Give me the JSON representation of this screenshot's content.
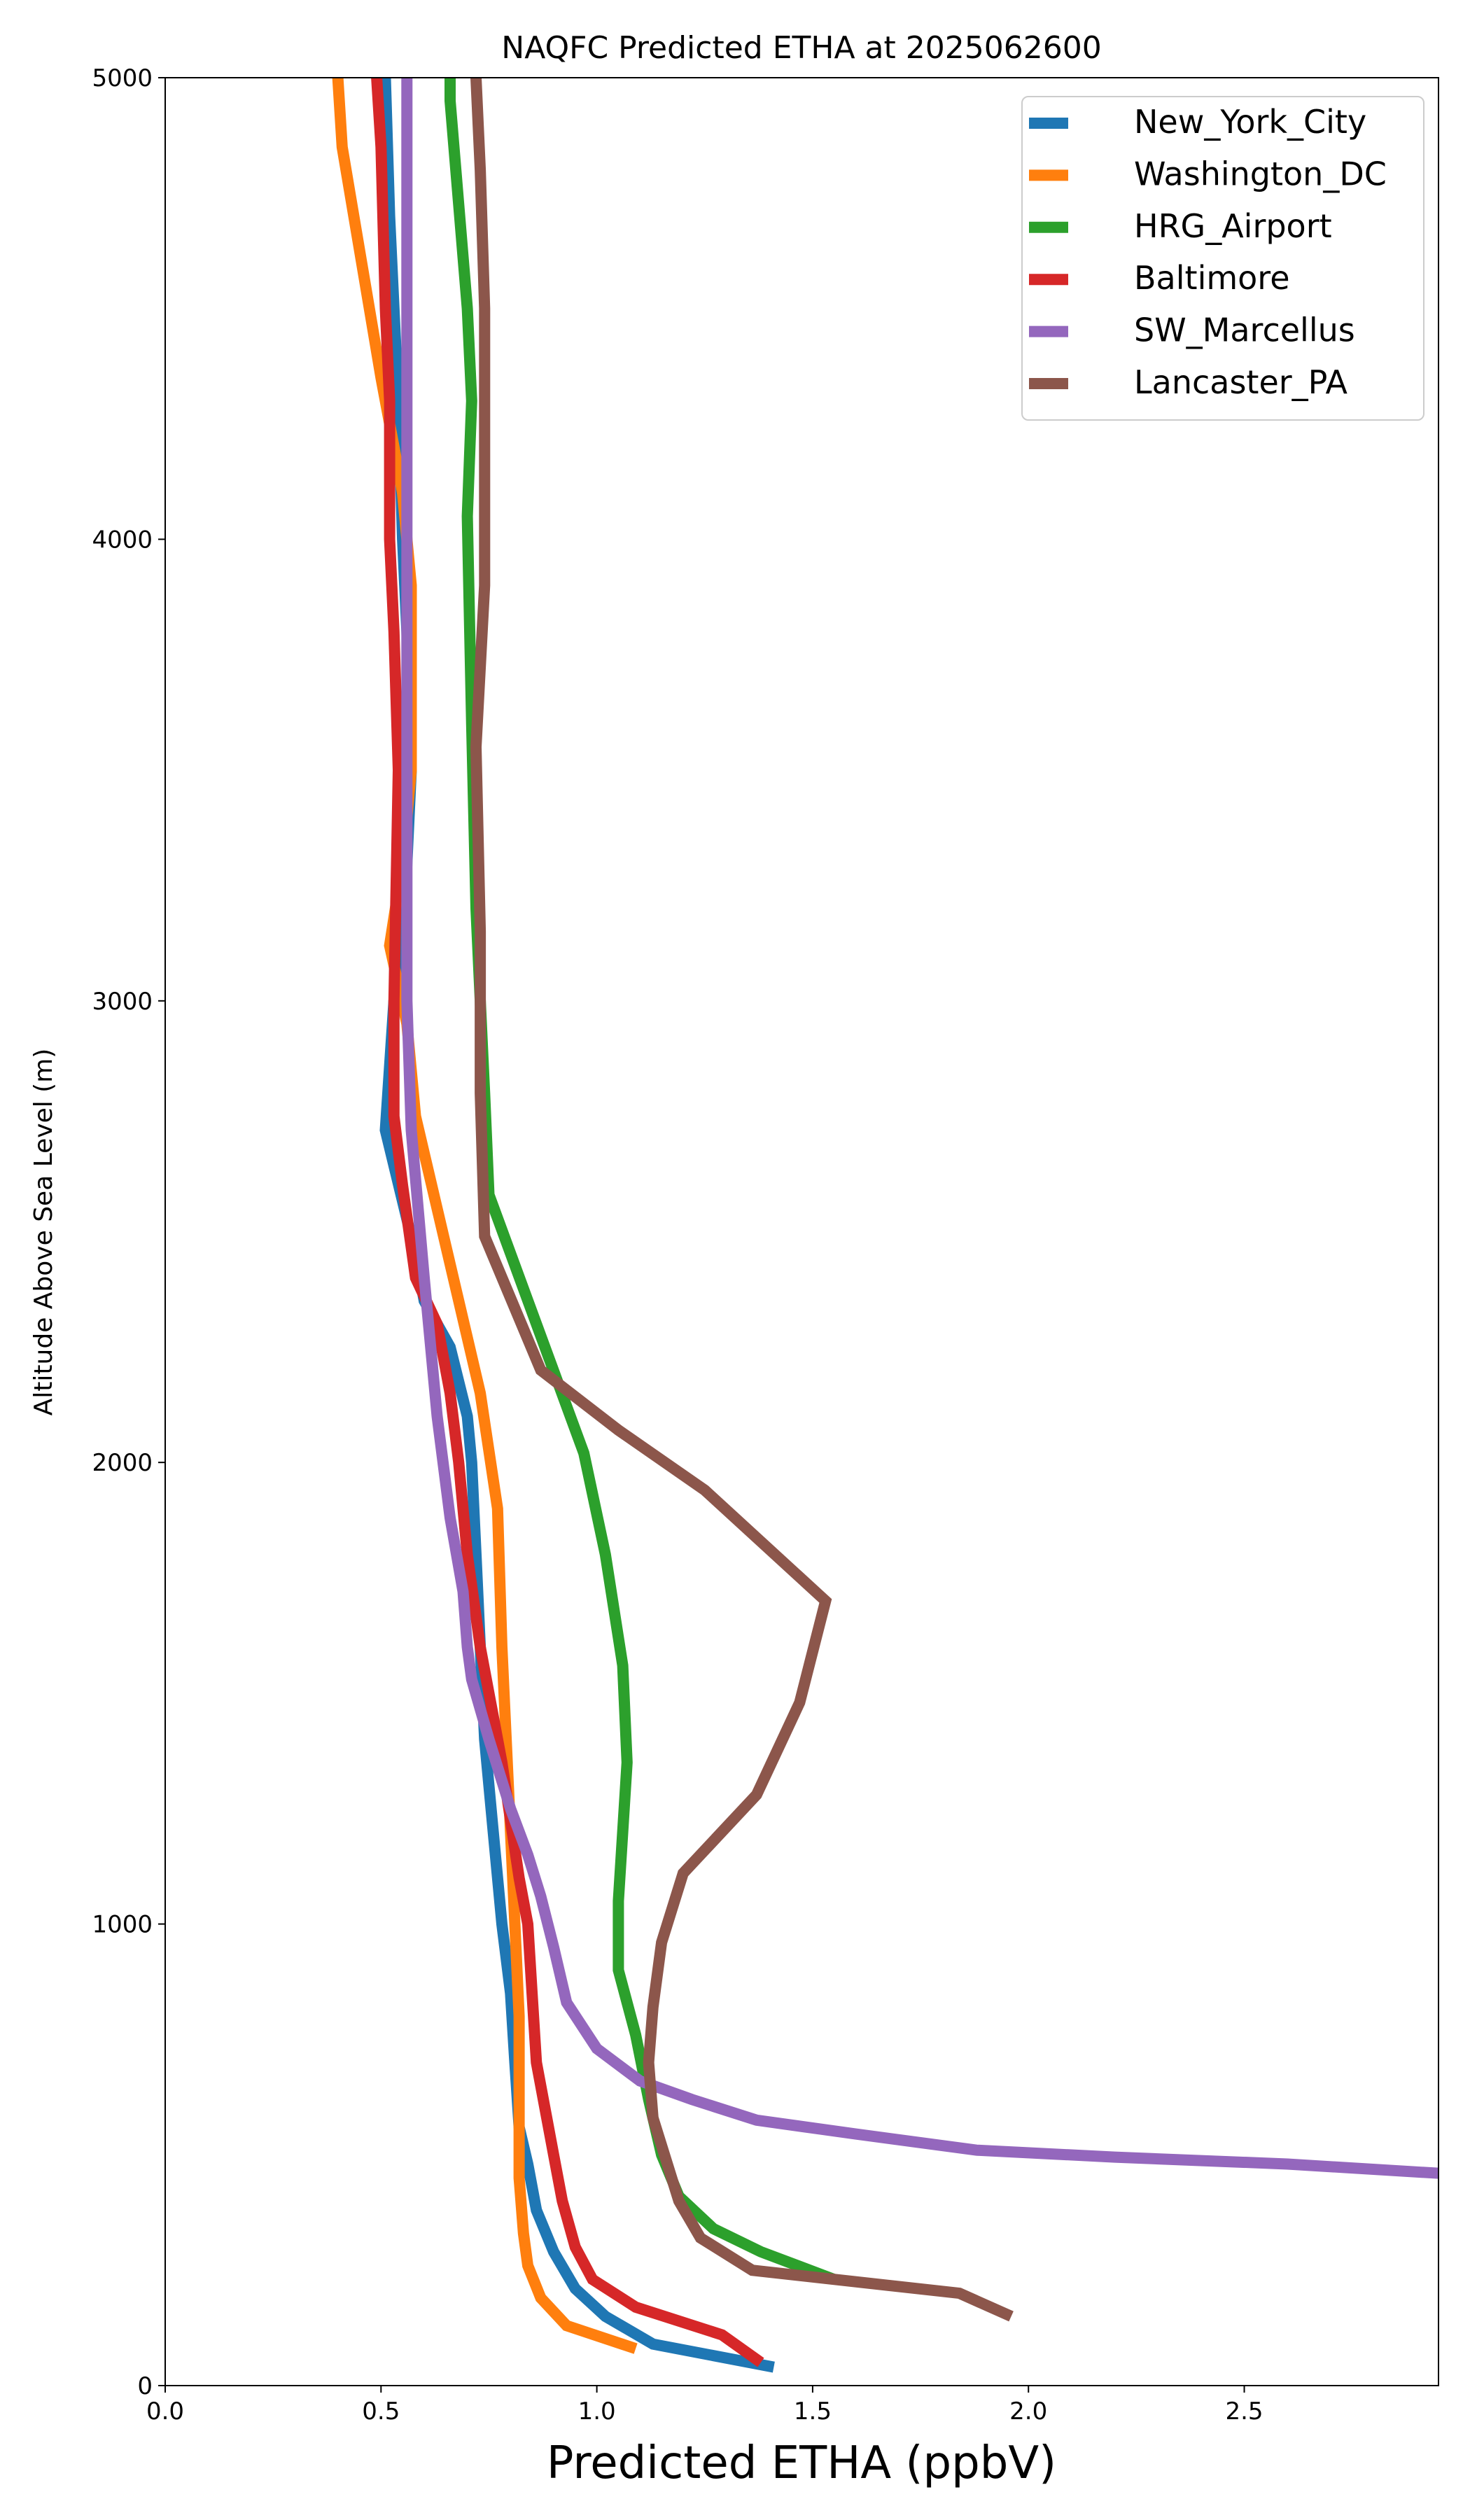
{
  "chart_data": {
    "type": "line",
    "title": "NAQFC Predicted ETHA at 2025062600",
    "xlabel": "Predicted ETHA (ppbV)",
    "ylabel": "Altitude Above Sea Level (m)",
    "xlim": [
      0.0,
      2.95
    ],
    "ylim": [
      0,
      5000
    ],
    "xticks": [
      "0.0",
      "0.5",
      "1.0",
      "1.5",
      "2.0",
      "2.5"
    ],
    "yticks": [
      "0",
      "1000",
      "2000",
      "3000",
      "4000",
      "5000"
    ],
    "grid": false,
    "legend": "top-right",
    "series": [
      {
        "name": "New_York_City",
        "color": "#1f77b4",
        "points": [
          [
            1.41,
            40
          ],
          [
            1.13,
            90
          ],
          [
            1.02,
            150
          ],
          [
            0.95,
            210
          ],
          [
            0.9,
            290
          ],
          [
            0.86,
            380
          ],
          [
            0.84,
            480
          ],
          [
            0.82,
            560
          ],
          [
            0.81,
            700
          ],
          [
            0.8,
            850
          ],
          [
            0.78,
            1000
          ],
          [
            0.76,
            1200
          ],
          [
            0.74,
            1400
          ],
          [
            0.73,
            1600
          ],
          [
            0.72,
            1800
          ],
          [
            0.71,
            2000
          ],
          [
            0.7,
            2100
          ],
          [
            0.66,
            2250
          ],
          [
            0.6,
            2350
          ],
          [
            0.58,
            2450
          ],
          [
            0.51,
            2720
          ],
          [
            0.53,
            3000
          ],
          [
            0.55,
            3100
          ],
          [
            0.57,
            3500
          ],
          [
            0.56,
            3800
          ],
          [
            0.55,
            4000
          ],
          [
            0.54,
            4300
          ],
          [
            0.53,
            4500
          ],
          [
            0.52,
            4700
          ],
          [
            0.51,
            5000
          ]
        ]
      },
      {
        "name": "Washington_DC",
        "color": "#ff7f0e",
        "points": [
          [
            1.09,
            80
          ],
          [
            0.93,
            130
          ],
          [
            0.87,
            190
          ],
          [
            0.84,
            260
          ],
          [
            0.83,
            330
          ],
          [
            0.82,
            450
          ],
          [
            0.82,
            600
          ],
          [
            0.82,
            800
          ],
          [
            0.81,
            1000
          ],
          [
            0.8,
            1200
          ],
          [
            0.79,
            1400
          ],
          [
            0.78,
            1600
          ],
          [
            0.77,
            1900
          ],
          [
            0.73,
            2150
          ],
          [
            0.68,
            2350
          ],
          [
            0.58,
            2750
          ],
          [
            0.56,
            2950
          ],
          [
            0.52,
            3120
          ],
          [
            0.55,
            3300
          ],
          [
            0.57,
            3500
          ],
          [
            0.57,
            3900
          ],
          [
            0.55,
            4100
          ],
          [
            0.5,
            4350
          ],
          [
            0.41,
            4850
          ],
          [
            0.4,
            5000
          ]
        ]
      },
      {
        "name": "HRG_Airport",
        "color": "#2ca02c",
        "points": [
          [
            1.55,
            230
          ],
          [
            1.38,
            290
          ],
          [
            1.27,
            340
          ],
          [
            1.19,
            410
          ],
          [
            1.15,
            500
          ],
          [
            1.12,
            620
          ],
          [
            1.09,
            760
          ],
          [
            1.05,
            900
          ],
          [
            1.05,
            1050
          ],
          [
            1.06,
            1200
          ],
          [
            1.07,
            1350
          ],
          [
            1.06,
            1560
          ],
          [
            1.02,
            1800
          ],
          [
            0.97,
            2020
          ],
          [
            0.86,
            2300
          ],
          [
            0.75,
            2580
          ],
          [
            0.74,
            2800
          ],
          [
            0.73,
            3000
          ],
          [
            0.72,
            3200
          ],
          [
            0.71,
            3600
          ],
          [
            0.7,
            4050
          ],
          [
            0.71,
            4300
          ],
          [
            0.7,
            4500
          ],
          [
            0.66,
            4950
          ],
          [
            0.66,
            5000
          ]
        ]
      },
      {
        "name": "Baltimore",
        "color": "#d62728",
        "points": [
          [
            1.38,
            50
          ],
          [
            1.29,
            110
          ],
          [
            1.09,
            170
          ],
          [
            0.99,
            230
          ],
          [
            0.95,
            300
          ],
          [
            0.92,
            400
          ],
          [
            0.9,
            500
          ],
          [
            0.88,
            600
          ],
          [
            0.86,
            700
          ],
          [
            0.85,
            850
          ],
          [
            0.84,
            1000
          ],
          [
            0.82,
            1100
          ],
          [
            0.78,
            1350
          ],
          [
            0.73,
            1600
          ],
          [
            0.7,
            1800
          ],
          [
            0.68,
            2000
          ],
          [
            0.66,
            2150
          ],
          [
            0.63,
            2300
          ],
          [
            0.58,
            2400
          ],
          [
            0.55,
            2600
          ],
          [
            0.53,
            2750
          ],
          [
            0.53,
            3000
          ],
          [
            0.54,
            3500
          ],
          [
            0.53,
            3800
          ],
          [
            0.52,
            4000
          ],
          [
            0.52,
            4300
          ],
          [
            0.51,
            4500
          ],
          [
            0.5,
            4850
          ],
          [
            0.49,
            5000
          ]
        ]
      },
      {
        "name": "SW_Marcellus",
        "color": "#9467bd",
        "points": [
          [
            2.95,
            460
          ],
          [
            2.6,
            480
          ],
          [
            2.2,
            495
          ],
          [
            1.88,
            510
          ],
          [
            1.6,
            545
          ],
          [
            1.37,
            575
          ],
          [
            1.22,
            620
          ],
          [
            1.1,
            660
          ],
          [
            1.0,
            730
          ],
          [
            0.93,
            830
          ],
          [
            0.9,
            950
          ],
          [
            0.87,
            1060
          ],
          [
            0.84,
            1150
          ],
          [
            0.8,
            1250
          ],
          [
            0.75,
            1400
          ],
          [
            0.71,
            1530
          ],
          [
            0.7,
            1600
          ],
          [
            0.69,
            1720
          ],
          [
            0.66,
            1880
          ],
          [
            0.63,
            2100
          ],
          [
            0.6,
            2400
          ],
          [
            0.57,
            2720
          ],
          [
            0.56,
            3000
          ],
          [
            0.56,
            3500
          ],
          [
            0.56,
            4000
          ],
          [
            0.56,
            4500
          ],
          [
            0.56,
            5000
          ]
        ]
      },
      {
        "name": "Lancaster_PA",
        "color": "#8c564b",
        "points": [
          [
            1.96,
            150
          ],
          [
            1.84,
            200
          ],
          [
            1.36,
            250
          ],
          [
            1.24,
            320
          ],
          [
            1.19,
            400
          ],
          [
            1.16,
            490
          ],
          [
            1.13,
            580
          ],
          [
            1.12,
            700
          ],
          [
            1.13,
            820
          ],
          [
            1.15,
            960
          ],
          [
            1.2,
            1110
          ],
          [
            1.37,
            1280
          ],
          [
            1.47,
            1480
          ],
          [
            1.53,
            1700
          ],
          [
            1.25,
            1940
          ],
          [
            1.05,
            2070
          ],
          [
            0.87,
            2200
          ],
          [
            0.74,
            2490
          ],
          [
            0.73,
            2800
          ],
          [
            0.73,
            3000
          ],
          [
            0.73,
            3150
          ],
          [
            0.72,
            3550
          ],
          [
            0.74,
            3900
          ],
          [
            0.74,
            4250
          ],
          [
            0.74,
            4500
          ],
          [
            0.73,
            4800
          ],
          [
            0.72,
            5000
          ]
        ]
      }
    ]
  }
}
